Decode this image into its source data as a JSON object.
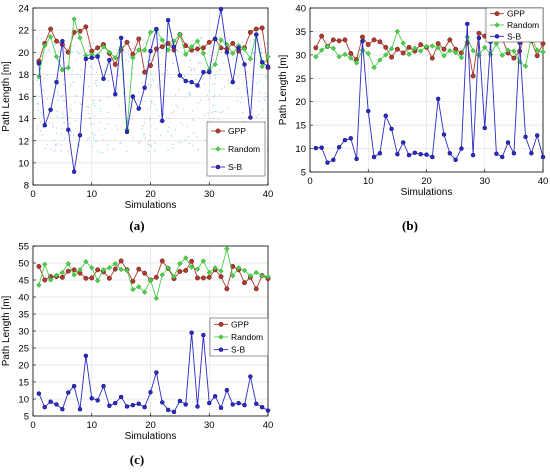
{
  "colors": {
    "gpp": "#b03a2e",
    "random": "#4cd04c",
    "sb": "#2b2bc4",
    "grid": "#e2e2e2",
    "noise": "#7fd3ea"
  },
  "chart_data": [
    {
      "type": "line",
      "caption": "(a)",
      "xlabel": "Simulations",
      "ylabel": "Path Length [m]",
      "xlim": [
        0,
        40
      ],
      "ylim": [
        8,
        24
      ],
      "xticks": [
        0,
        10,
        20,
        30,
        40
      ],
      "yticks": [
        8,
        10,
        12,
        14,
        16,
        18,
        20,
        22,
        24
      ],
      "grid": true,
      "legend_position": "bottom-right",
      "series": [
        {
          "name": "GPP",
          "key": "gpp",
          "x": [
            1,
            2,
            3,
            4,
            5,
            6,
            7,
            8,
            9,
            10,
            11,
            12,
            13,
            14,
            15,
            16,
            17,
            18,
            19,
            20,
            21,
            22,
            23,
            24,
            25,
            26,
            27,
            28,
            29,
            30,
            31,
            32,
            33,
            34,
            35,
            36,
            37,
            38,
            39,
            40
          ],
          "values": [
            19.2,
            20.8,
            22.1,
            21.0,
            20.7,
            20.0,
            21.8,
            21.9,
            22.3,
            20.1,
            20.4,
            20.7,
            19.9,
            18.9,
            20.2,
            20.9,
            19.8,
            21.2,
            18.2,
            18.8,
            20.3,
            20.5,
            20.8,
            20.2,
            21.6,
            20.6,
            20.2,
            20.3,
            20.4,
            20.9,
            21.2,
            20.4,
            20.3,
            20.8,
            20.1,
            20.4,
            21.8,
            22.1,
            22.2,
            18.6
          ]
        },
        {
          "name": "Random",
          "key": "random",
          "x": [
            1,
            2,
            3,
            4,
            5,
            6,
            7,
            8,
            9,
            10,
            11,
            12,
            13,
            14,
            15,
            16,
            17,
            18,
            19,
            20,
            21,
            22,
            23,
            24,
            25,
            26,
            27,
            28,
            29,
            30,
            31,
            32,
            33,
            34,
            35,
            36,
            37,
            38,
            39,
            40
          ],
          "values": [
            17.8,
            20.6,
            21.4,
            19.6,
            18.4,
            18.6,
            23.0,
            21.3,
            19.7,
            19.8,
            19.7,
            20.5,
            20.0,
            19.5,
            20.4,
            13.0,
            19.5,
            20.2,
            20.2,
            21.8,
            22.0,
            21.1,
            20.2,
            21.0,
            21.6,
            19.8,
            20.5,
            21.0,
            19.9,
            18.4,
            18.9,
            21.1,
            20.7,
            19.9,
            20.6,
            20.3,
            19.4,
            21.6,
            18.7,
            19.6
          ]
        },
        {
          "name": "S-B",
          "key": "sb",
          "x": [
            1,
            2,
            3,
            4,
            5,
            6,
            7,
            8,
            9,
            10,
            11,
            12,
            13,
            14,
            15,
            16,
            17,
            18,
            19,
            20,
            21,
            22,
            23,
            24,
            25,
            26,
            27,
            28,
            29,
            30,
            31,
            32,
            33,
            34,
            35,
            36,
            37,
            38,
            39,
            40
          ],
          "values": [
            19.0,
            13.4,
            14.8,
            17.3,
            21.0,
            13.0,
            9.2,
            12.5,
            19.4,
            19.5,
            19.6,
            17.6,
            19.3,
            16.2,
            21.3,
            12.8,
            16.0,
            14.9,
            16.8,
            20.1,
            22.1,
            13.8,
            22.9,
            20.5,
            17.9,
            17.4,
            17.3,
            17.0,
            18.2,
            18.2,
            21.2,
            23.9,
            20.0,
            17.3,
            20.4,
            18.9,
            14.1,
            21.6,
            19.1,
            18.7
          ]
        }
      ]
    },
    {
      "type": "line",
      "caption": "(b)",
      "xlabel": "Simulations",
      "ylabel": "Path Length [m]",
      "xlim": [
        0,
        40
      ],
      "ylim": [
        5,
        40
      ],
      "xticks": [
        0,
        10,
        20,
        30,
        40
      ],
      "yticks": [
        5,
        10,
        15,
        20,
        25,
        30,
        35,
        40
      ],
      "grid": true,
      "legend_position": "top-right",
      "series": [
        {
          "name": "GPP",
          "key": "gpp",
          "x": [
            1,
            2,
            3,
            4,
            5,
            6,
            7,
            8,
            9,
            10,
            11,
            12,
            13,
            14,
            15,
            16,
            17,
            18,
            19,
            20,
            21,
            22,
            23,
            24,
            25,
            26,
            27,
            28,
            29,
            30,
            31,
            32,
            33,
            34,
            35,
            36,
            37,
            38,
            39,
            40
          ],
          "values": [
            31.5,
            34.0,
            31.8,
            33.2,
            33.0,
            33.2,
            30.3,
            29.0,
            33.8,
            32.2,
            33.2,
            32.8,
            31.6,
            29.5,
            31.2,
            30.4,
            31.6,
            30.8,
            32.2,
            31.6,
            29.3,
            32.4,
            31.2,
            33.2,
            31.2,
            30.4,
            32.6,
            25.5,
            34.6,
            34.0,
            33.0,
            33.6,
            33.4,
            30.4,
            29.3,
            30.8,
            34.8,
            33.0,
            29.8,
            32.4
          ]
        },
        {
          "name": "Random",
          "key": "random",
          "x": [
            1,
            2,
            3,
            4,
            5,
            6,
            7,
            8,
            9,
            10,
            11,
            12,
            13,
            14,
            15,
            16,
            17,
            18,
            19,
            20,
            21,
            22,
            23,
            24,
            25,
            26,
            27,
            28,
            29,
            30,
            31,
            32,
            33,
            34,
            35,
            36,
            37,
            38,
            39,
            40
          ],
          "values": [
            29.6,
            31.0,
            31.8,
            31.4,
            29.6,
            30.1,
            29.3,
            28.3,
            31.0,
            30.3,
            27.3,
            28.9,
            30.0,
            31.3,
            35.0,
            32.5,
            30.1,
            31.4,
            30.8,
            31.8,
            31.9,
            31.5,
            29.8,
            30.9,
            30.5,
            29.4,
            33.8,
            30.9,
            29.9,
            31.6,
            30.1,
            32.4,
            29.9,
            31.0,
            30.8,
            28.5,
            27.6,
            33.8,
            31.0,
            30.6
          ]
        },
        {
          "name": "S-B",
          "key": "sb",
          "x": [
            1,
            2,
            3,
            4,
            5,
            6,
            7,
            8,
            9,
            10,
            11,
            12,
            13,
            14,
            15,
            16,
            17,
            18,
            19,
            20,
            21,
            22,
            23,
            24,
            25,
            26,
            27,
            28,
            29,
            30,
            31,
            32,
            33,
            34,
            35,
            36,
            37,
            38,
            39,
            40
          ],
          "values": [
            10.1,
            10.2,
            7.0,
            7.6,
            10.3,
            11.8,
            12.2,
            7.8,
            32.9,
            18.0,
            8.2,
            9.0,
            17.0,
            14.2,
            8.8,
            11.3,
            8.6,
            9.1,
            8.8,
            8.7,
            8.2,
            20.6,
            13.0,
            9.0,
            7.6,
            10.0,
            36.6,
            8.6,
            33.6,
            14.4,
            32.8,
            8.9,
            8.2,
            11.3,
            9.0,
            32.6,
            12.5,
            9.0,
            12.8,
            8.2
          ]
        }
      ]
    },
    {
      "type": "line",
      "caption": "(c)",
      "xlabel": "Simulations",
      "ylabel": "Path Length [m]",
      "xlim": [
        0,
        40
      ],
      "ylim": [
        5,
        55
      ],
      "xticks": [
        0,
        10,
        20,
        30,
        40
      ],
      "yticks": [
        5,
        10,
        15,
        20,
        25,
        30,
        35,
        40,
        45,
        50,
        55
      ],
      "grid": true,
      "legend_position": "right",
      "series": [
        {
          "name": "GPP",
          "key": "gpp",
          "x": [
            1,
            2,
            3,
            4,
            5,
            6,
            7,
            8,
            9,
            10,
            11,
            12,
            13,
            14,
            15,
            16,
            17,
            18,
            19,
            20,
            21,
            22,
            23,
            24,
            25,
            26,
            27,
            28,
            29,
            30,
            31,
            32,
            33,
            34,
            35,
            36,
            37,
            38,
            39,
            40
          ],
          "values": [
            49.0,
            45.0,
            46.0,
            46.0,
            45.8,
            47.6,
            48.0,
            47.0,
            45.5,
            45.6,
            48.0,
            47.4,
            45.5,
            48.2,
            50.6,
            48.0,
            44.6,
            48.2,
            47.0,
            45.0,
            45.8,
            50.6,
            48.4,
            45.4,
            47.5,
            47.8,
            50.5,
            45.6,
            45.6,
            45.8,
            48.0,
            46.0,
            42.4,
            49.0,
            48.0,
            44.2,
            45.8,
            42.4,
            46.3,
            45.4
          ]
        },
        {
          "name": "Random",
          "key": "random",
          "x": [
            1,
            2,
            3,
            4,
            5,
            6,
            7,
            8,
            9,
            10,
            11,
            12,
            13,
            14,
            15,
            16,
            17,
            18,
            19,
            20,
            21,
            22,
            23,
            24,
            25,
            26,
            27,
            28,
            29,
            30,
            31,
            32,
            33,
            34,
            35,
            36,
            37,
            38,
            39,
            40
          ],
          "values": [
            43.5,
            49.6,
            45.0,
            46.4,
            47.2,
            49.8,
            46.5,
            48.0,
            50.4,
            48.6,
            44.8,
            48.0,
            48.6,
            49.8,
            48.1,
            47.8,
            42.2,
            43.0,
            41.4,
            45.0,
            39.6,
            46.5,
            48.6,
            46.0,
            49.8,
            51.5,
            48.8,
            48.2,
            50.6,
            47.2,
            48.6,
            47.6,
            54.2,
            46.2,
            48.6,
            47.8,
            46.2,
            47.2,
            46.2,
            46.0
          ]
        },
        {
          "name": "S-B",
          "key": "sb",
          "x": [
            1,
            2,
            3,
            4,
            5,
            6,
            7,
            8,
            9,
            10,
            11,
            12,
            13,
            14,
            15,
            16,
            17,
            18,
            19,
            20,
            21,
            22,
            23,
            24,
            25,
            26,
            27,
            28,
            29,
            30,
            31,
            32,
            33,
            34,
            35,
            36,
            37,
            38,
            39,
            40
          ],
          "values": [
            11.6,
            7.6,
            9.2,
            8.4,
            7.0,
            11.9,
            13.8,
            7.0,
            22.7,
            10.2,
            9.6,
            13.8,
            8.0,
            8.8,
            10.6,
            7.8,
            8.2,
            8.6,
            7.6,
            12.0,
            17.8,
            9.0,
            6.8,
            6.2,
            9.4,
            8.4,
            29.5,
            7.8,
            28.8,
            8.8,
            10.8,
            7.4,
            12.6,
            8.4,
            8.8,
            8.2,
            16.6,
            8.6,
            7.6,
            6.6
          ]
        }
      ]
    }
  ]
}
